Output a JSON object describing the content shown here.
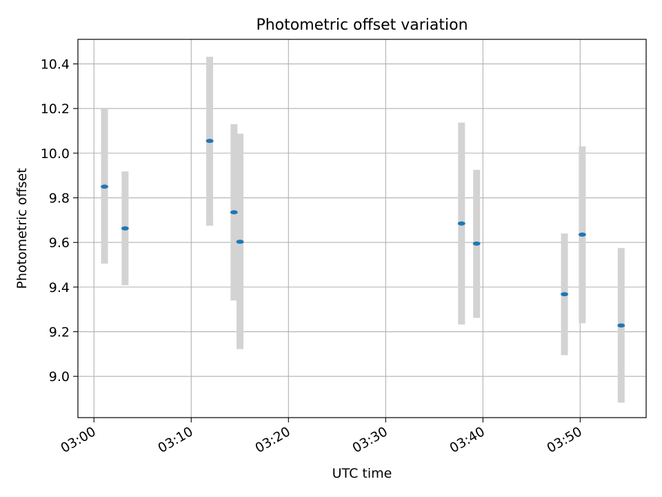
{
  "chart_data": {
    "type": "scatter",
    "title": "Photometric offset variation",
    "xlabel": "UTC time",
    "ylabel": "Photometric offset",
    "xlim": [
      "02:58:21",
      "03:56:47"
    ],
    "ylim": [
      8.815,
      10.51
    ],
    "x_ticks": [
      "03:00",
      "03:10",
      "03:20",
      "03:30",
      "03:40",
      "03:50"
    ],
    "y_ticks": [
      "9.0",
      "9.2",
      "9.4",
      "9.6",
      "9.8",
      "10.0",
      "10.2",
      "10.4"
    ],
    "grid": true,
    "points": [
      {
        "x": "03:01:05",
        "y": 9.85,
        "ymin": 9.505,
        "ymax": 10.2
      },
      {
        "x": "03:03:12",
        "y": 9.663,
        "ymin": 9.408,
        "ymax": 9.918
      },
      {
        "x": "03:11:54",
        "y": 10.055,
        "ymin": 9.675,
        "ymax": 10.432
      },
      {
        "x": "03:14:24",
        "y": 9.735,
        "ymin": 9.34,
        "ymax": 10.13
      },
      {
        "x": "03:15:01",
        "y": 9.603,
        "ymin": 9.122,
        "ymax": 10.087
      },
      {
        "x": "03:37:48",
        "y": 9.685,
        "ymin": 9.232,
        "ymax": 10.137
      },
      {
        "x": "03:39:21",
        "y": 9.595,
        "ymin": 9.262,
        "ymax": 9.925
      },
      {
        "x": "03:48:23",
        "y": 9.368,
        "ymin": 9.095,
        "ymax": 9.64
      },
      {
        "x": "03:50:13",
        "y": 9.635,
        "ymin": 9.238,
        "ymax": 10.03
      },
      {
        "x": "03:54:13",
        "y": 9.228,
        "ymin": 8.882,
        "ymax": 9.575
      }
    ],
    "marker_color": "#1f77b4",
    "errorbar_color": "#d3d3d3",
    "grid_color": "#b0b0b0"
  }
}
